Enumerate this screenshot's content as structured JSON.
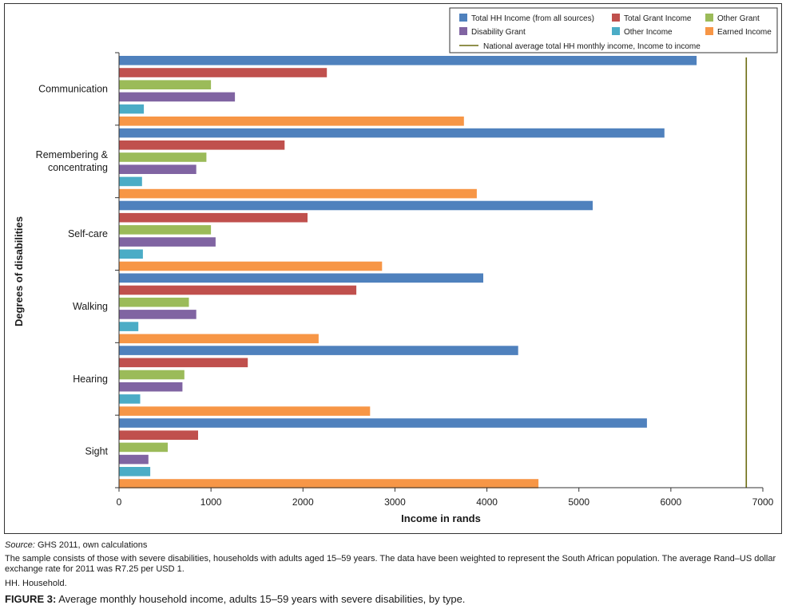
{
  "chart_data": {
    "type": "bar",
    "orientation": "horizontal",
    "xlabel": "Income in rands",
    "ylabel": "Degrees of disabilities",
    "xlim": [
      0,
      7000
    ],
    "xticks": [
      0,
      1000,
      2000,
      3000,
      4000,
      5000,
      6000,
      7000
    ],
    "grid": false,
    "legend_position": "top-right",
    "categories": [
      "Communication",
      "Remembering &\nconcentrating",
      "Self-care",
      "Walking",
      "Hearing",
      "Sight"
    ],
    "series": [
      {
        "name": "Total HH Income (from all sources)",
        "color": "#4f81bd",
        "values": [
          6280,
          5930,
          5150,
          3960,
          4340,
          5740
        ]
      },
      {
        "name": "Total Grant Income",
        "color": "#c0504d",
        "values": [
          2260,
          1800,
          2050,
          2580,
          1400,
          860
        ]
      },
      {
        "name": "Other Grant",
        "color": "#9bbb59",
        "values": [
          1000,
          950,
          1000,
          760,
          710,
          530
        ]
      },
      {
        "name": "Disability Grant",
        "color": "#8064a2",
        "values": [
          1260,
          840,
          1050,
          840,
          690,
          320
        ]
      },
      {
        "name": "Other Income",
        "color": "#4bacc6",
        "values": [
          270,
          250,
          260,
          210,
          230,
          340
        ]
      },
      {
        "name": "Earned Income",
        "color": "#f79646",
        "values": [
          3750,
          3890,
          2860,
          2170,
          2730,
          4560
        ]
      }
    ],
    "reference_line": {
      "name": "National average total HH monthly income, Income to income",
      "value": 6820,
      "color": "#6b6b10"
    }
  },
  "notes": {
    "source_label": "Source:",
    "source_text": "GHS 2011, own calculations",
    "sample": "The sample consists of those with severe disabilities, households with adults aged 15–59 years. The data have been weighted to represent the South African population. The average Rand–US dollar exchange rate for 2011 was R7.25 per USD 1.",
    "abbrev": "HH. Household.",
    "figure_label": "FIGURE 3:",
    "figure_text": "Average monthly household income, adults 15–59 years with severe disabilities, by type."
  }
}
